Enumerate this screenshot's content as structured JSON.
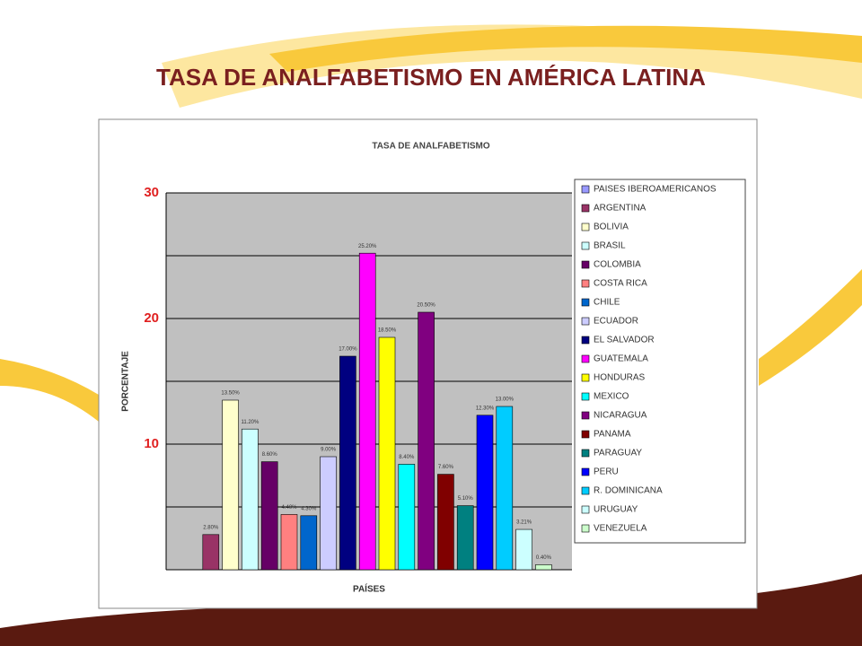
{
  "slide_title": "TASA DE ANALFABETISMO EN AMÉRICA LATINA",
  "chart_data": {
    "type": "bar",
    "title": "TASA DE ANALFABETISMO",
    "y_label": "PORCENTAJE",
    "x_label": "PAÍSES",
    "categories": [
      "PAISES IBEROAMERICANOS",
      "ARGENTINA",
      "BOLIVIA",
      "BRASIL",
      "COLOMBIA",
      "COSTA RICA",
      "CHILE",
      "ECUADOR",
      "EL SALVADOR",
      "GUATEMALA",
      "HONDURAS",
      "MEXICO",
      "NICARAGUA",
      "PANAMA",
      "PARAGUAY",
      "PERU",
      "R. DOMINICANA",
      "URUGUAY",
      "VENEZUELA"
    ],
    "values": [
      null,
      2.8,
      13.5,
      11.2,
      8.6,
      4.4,
      4.3,
      9.0,
      17.0,
      25.2,
      18.5,
      8.4,
      20.5,
      7.6,
      5.1,
      12.3,
      13.0,
      3.21,
      0.4
    ],
    "value_labels": [
      null,
      "2.80%",
      "13.50%",
      "11.20%",
      "8.60%",
      "4.40%",
      "4.30%",
      "9.00%",
      "17.00%",
      "25.20%",
      "18.50%",
      "8.40%",
      "20.50%",
      "7.60%",
      "5.10%",
      "12.30%",
      "13.00%",
      "3.21%",
      "0.40%"
    ],
    "colors": [
      "#9999ff",
      "#993366",
      "#ffffcc",
      "#ccffff",
      "#660066",
      "#ff8080",
      "#0066cc",
      "#ccccff",
      "#000080",
      "#ff00ff",
      "#ffff00",
      "#00ffff",
      "#800080",
      "#800000",
      "#008080",
      "#0000ff",
      "#00ccff",
      "#ccffff",
      "#ccffcc"
    ],
    "ylim": [
      0,
      30
    ],
    "yticks": [
      10,
      20,
      30
    ],
    "minor_grid": [
      5,
      15,
      25
    ],
    "grid": true,
    "legend": "right"
  }
}
